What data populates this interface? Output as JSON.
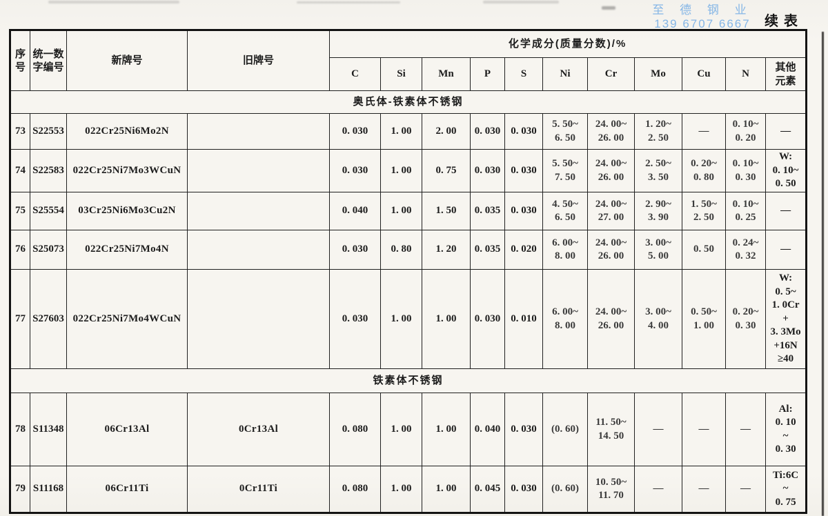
{
  "page": {
    "continued_label": "续表",
    "watermark": {
      "line1": "至 德 钢 业",
      "line2": "139 6707 6667",
      "color": "#85b6e6"
    }
  },
  "table": {
    "corner_headers": [
      {
        "key": "no",
        "label": "序\n号"
      },
      {
        "key": "uns",
        "label": "统一数\n字编号"
      },
      {
        "key": "new_grade",
        "label": "新牌号"
      },
      {
        "key": "old_grade",
        "label": "旧牌号"
      }
    ],
    "chem_header": "化学成分(质量分数)/%",
    "element_headers": [
      "C",
      "Si",
      "Mn",
      "P",
      "S",
      "Ni",
      "Cr",
      "Mo",
      "Cu",
      "N",
      "其他\n元素"
    ],
    "sections": [
      {
        "title": "奥氏体-铁素体不锈钢",
        "rows": [
          {
            "no": "73",
            "uns": "S22553",
            "new_grade": "022Cr25Ni6Mo2N",
            "old_grade": "",
            "c": "0. 030",
            "si": "1. 00",
            "mn": "2. 00",
            "p": "0. 030",
            "s": "0. 030",
            "ni": "5. 50~\n6. 50",
            "cr": "24. 00~\n26. 00",
            "mo": "1. 20~\n2. 50",
            "cu": "—",
            "n": "0. 10~\n0. 20",
            "other": "—"
          },
          {
            "no": "74",
            "uns": "S22583",
            "new_grade": "022Cr25Ni7Mo3WCuN",
            "old_grade": "",
            "c": "0. 030",
            "si": "1. 00",
            "mn": "0. 75",
            "p": "0. 030",
            "s": "0. 030",
            "ni": "5. 50~\n7. 50",
            "cr": "24. 00~\n26. 00",
            "mo": "2. 50~\n3. 50",
            "cu": "0. 20~\n0. 80",
            "n": "0. 10~\n0. 30",
            "other": "W:\n0. 10~\n0. 50"
          },
          {
            "no": "75",
            "uns": "S25554",
            "new_grade": "03Cr25Ni6Mo3Cu2N",
            "old_grade": "",
            "c": "0. 040",
            "si": "1. 00",
            "mn": "1. 50",
            "p": "0. 035",
            "s": "0. 030",
            "ni": "4. 50~\n6. 50",
            "cr": "24. 00~\n27. 00",
            "mo": "2. 90~\n3. 90",
            "cu": "1. 50~\n2. 50",
            "n": "0. 10~\n0. 25",
            "other": "—"
          },
          {
            "no": "76",
            "uns": "S25073",
            "new_grade": "022Cr25Ni7Mo4N",
            "old_grade": "",
            "c": "0. 030",
            "si": "0. 80",
            "mn": "1. 20",
            "p": "0. 035",
            "s": "0. 020",
            "ni": "6. 00~\n8. 00",
            "cr": "24. 00~\n26. 00",
            "mo": "3. 00~\n5. 00",
            "cu": "0. 50",
            "n": "0. 24~\n0. 32",
            "other": "—"
          },
          {
            "no": "77",
            "uns": "S27603",
            "new_grade": "022Cr25Ni7Mo4WCuN",
            "old_grade": "",
            "c": "0. 030",
            "si": "1. 00",
            "mn": "1. 00",
            "p": "0. 030",
            "s": "0. 010",
            "ni": "6. 00~\n8. 00",
            "cr": "24. 00~\n26. 00",
            "mo": "3. 00~\n4. 00",
            "cu": "0. 50~\n1. 00",
            "n": "0. 20~\n0. 30",
            "other": "W:\n0. 5~\n1. 0Cr\n+\n3. 3Mo\n+16N\n≥40"
          }
        ]
      },
      {
        "title": "铁素体不锈钢",
        "rows": [
          {
            "no": "78",
            "uns": "S11348",
            "new_grade": "06Cr13Al",
            "old_grade": "0Cr13Al",
            "c": "0. 080",
            "si": "1. 00",
            "mn": "1. 00",
            "p": "0. 040",
            "s": "0. 030",
            "ni": "(0. 60)",
            "cr": "11. 50~\n14. 50",
            "mo": "—",
            "cu": "—",
            "n": "—",
            "other": "Al:\n0. 10\n~\n0. 30"
          },
          {
            "no": "79",
            "uns": "S11168",
            "new_grade": "06Cr11Ti",
            "old_grade": "0Cr11Ti",
            "c": "0. 080",
            "si": "1. 00",
            "mn": "1. 00",
            "p": "0. 045",
            "s": "0. 030",
            "ni": "(0. 60)",
            "cr": "10. 50~\n11. 70",
            "mo": "—",
            "cu": "—",
            "n": "—",
            "other": "Ti:6C\n~\n0. 75"
          }
        ]
      }
    ]
  }
}
